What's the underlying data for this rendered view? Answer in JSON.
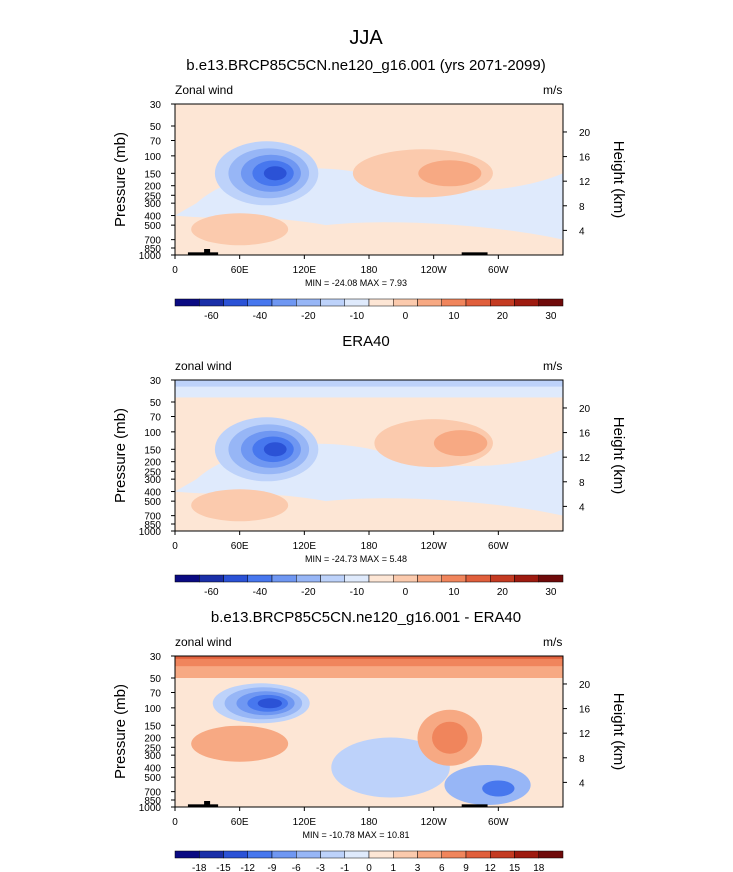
{
  "chart_data": {
    "type": "heatmap",
    "title": "JJA",
    "panels": [
      {
        "id": "model",
        "title": "b.e13.BRCP85C5CN.ne120_g16.001 (yrs 2071-2099)",
        "left_label": "Zonal wind",
        "right_label": "m/s",
        "ylabel": "Pressure (mb)",
        "y2label": "Height (km)",
        "x_ticks": [
          "0",
          "60E",
          "120E",
          "180",
          "120W",
          "60W"
        ],
        "y_ticks": [
          "30",
          "50",
          "70",
          "100",
          "150",
          "200",
          "250",
          "300",
          "400",
          "500",
          "700",
          "850",
          "1000"
        ],
        "y2_ticks": [
          "20",
          "16",
          "12",
          "8",
          "4"
        ],
        "stats": "MIN = -24.08  MAX =  7.93",
        "min": -24.08,
        "max": 7.93,
        "colorbar_labels": [
          "-60",
          "-40",
          "-20",
          "-10",
          "0",
          "10",
          "20",
          "30"
        ],
        "features": [
          {
            "kind": "jet",
            "label": "easterly max over 60E-120E near 150 mb",
            "lon_center": 85,
            "lon_width": 60,
            "p_center": 150,
            "value": -24
          },
          {
            "kind": "westerly",
            "label": "westerlies 150W-60W near 150 mb",
            "lon_center": 230,
            "lon_width": 130,
            "p_center": 150,
            "value": 7
          }
        ]
      },
      {
        "id": "obs",
        "title": "ERA40",
        "left_label": "zonal wind",
        "right_label": "m/s",
        "ylabel": "Pressure (mb)",
        "y2label": "Height (km)",
        "x_ticks": [
          "0",
          "60E",
          "120E",
          "180",
          "120W",
          "60W"
        ],
        "y_ticks": [
          "30",
          "50",
          "70",
          "100",
          "150",
          "200",
          "250",
          "300",
          "400",
          "500",
          "700",
          "850",
          "1000"
        ],
        "y2_ticks": [
          "20",
          "16",
          "12",
          "8",
          "4"
        ],
        "stats": "MIN = -24.73  MAX =  5.48",
        "min": -24.73,
        "max": 5.48,
        "colorbar_labels": [
          "-60",
          "-40",
          "-20",
          "-10",
          "0",
          "10",
          "20",
          "30"
        ],
        "features": [
          {
            "kind": "jet",
            "label": "easterly max over 60E-120E near 150 mb",
            "lon_center": 85,
            "lon_width": 60,
            "p_center": 150,
            "value": -24
          },
          {
            "kind": "westerly",
            "label": "westerlies 160W-60W near 130 mb",
            "lon_center": 240,
            "lon_width": 110,
            "p_center": 130,
            "value": 5
          }
        ]
      },
      {
        "id": "diff",
        "title": "b.e13.BRCP85C5CN.ne120_g16.001 - ERA40",
        "left_label": "zonal wind",
        "right_label": "m/s",
        "ylabel": "Pressure (mb)",
        "y2label": "Height (km)",
        "x_ticks": [
          "0",
          "60E",
          "120E",
          "180",
          "120W",
          "60W"
        ],
        "y_ticks": [
          "30",
          "50",
          "70",
          "100",
          "150",
          "200",
          "250",
          "300",
          "400",
          "500",
          "700",
          "850",
          "1000"
        ],
        "y2_ticks": [
          "20",
          "16",
          "12",
          "8",
          "4"
        ],
        "stats": "MIN = -10.78  MAX = 10.81",
        "min": -10.78,
        "max": 10.81,
        "colorbar_labels": [
          "-18",
          "-15",
          "-12",
          "-9",
          "-6",
          "-3",
          "-1",
          "0",
          "1",
          "3",
          "6",
          "9",
          "12",
          "15",
          "18"
        ],
        "features": [
          {
            "kind": "band",
            "label": "positive band near 30-40 mb",
            "p_center": 35,
            "value": 10
          },
          {
            "kind": "jet",
            "label": "negative max over 60E-120E near 90 mb",
            "lon_center": 80,
            "lon_width": 60,
            "p_center": 90,
            "value": -10
          },
          {
            "kind": "westerly",
            "label": "positive anomaly 130W-80W near 200 mb",
            "lon_center": 255,
            "lon_width": 60,
            "p_center": 200,
            "value": 6
          }
        ]
      }
    ]
  },
  "colors": {
    "scale": [
      "#0a0a82",
      "#1a2fa8",
      "#2b52d6",
      "#4777ee",
      "#6f97f2",
      "#97b6f6",
      "#bdd2fa",
      "#dfeafc",
      "#fde6d5",
      "#fbcaad",
      "#f7a983",
      "#f0855c",
      "#e05f3c",
      "#c43b22",
      "#9e1b10",
      "#6f0a0a"
    ],
    "land": "#000000"
  }
}
